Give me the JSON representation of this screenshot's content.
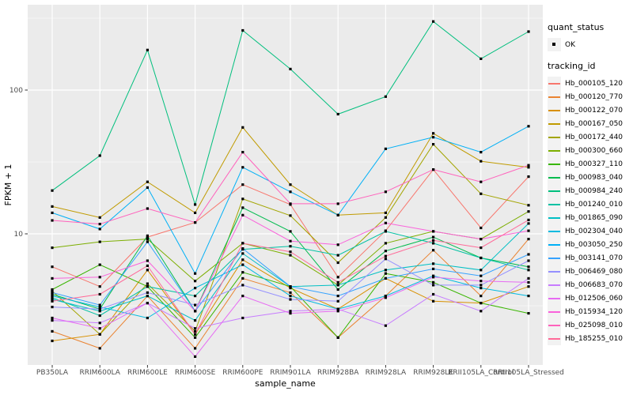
{
  "legend": {
    "quant_status_title": "quant_status",
    "quant_status_entries": [
      {
        "label": "OK",
        "marker": "black-square-point"
      }
    ],
    "tracking_id_title": "tracking_id"
  },
  "panel": {
    "bg": "#EBEBEB",
    "grid_color": "#FFFFFF",
    "point_color": "#000000",
    "tick_label_color": "#4D4D4D",
    "axis_title_color": "#000000"
  },
  "chart_data": {
    "type": "line",
    "title": "",
    "xlabel": "sample_name",
    "ylabel": "FPKM + 1",
    "x_categories": [
      "PB350LA",
      "RRIM600LA",
      "RRIM600LE",
      "RRIM600SE",
      "RRIM600PE",
      "RRIM901LA",
      "RRIM928BA",
      "RRIM928LA",
      "RRIM928LE",
      "RRII105LA_Control",
      "RRII105LA_Stressed"
    ],
    "y_scale": "log10",
    "y_major_ticks": [
      10,
      100
    ],
    "y_minor_ticks": [
      3.162,
      31.62,
      316.2
    ],
    "ylim": [
      1.2,
      390
    ],
    "grid": true,
    "legend_position": "right",
    "point_marker": "black-square",
    "series": [
      {
        "name": "Hb_000105_120",
        "color": "#F8766D",
        "values": [
          5.9,
          4.3,
          9.5,
          12,
          22,
          16,
          5.0,
          10.5,
          28,
          11,
          25
        ]
      },
      {
        "name": "Hb_000120_770",
        "color": "#EA8331",
        "values": [
          2.1,
          1.6,
          3.7,
          1.6,
          4.9,
          3.9,
          1.9,
          3.7,
          7.7,
          3.7,
          9.2
        ]
      },
      {
        "name": "Hb_000122_070",
        "color": "#D89000",
        "values": [
          1.8,
          2.0,
          5.6,
          2.0,
          6.6,
          4.2,
          3.0,
          4.9,
          3.4,
          3.3,
          4.3
        ]
      },
      {
        "name": "Hb_000167_050",
        "color": "#C09B00",
        "values": [
          15.5,
          13,
          23,
          14,
          55,
          22,
          13.5,
          14,
          50,
          32,
          29
        ]
      },
      {
        "name": "Hb_000172_440",
        "color": "#A3A500",
        "values": [
          4.0,
          2.0,
          4.5,
          2.1,
          17.5,
          13.4,
          6.3,
          13,
          42,
          19,
          15.8
        ]
      },
      {
        "name": "Hb_000300_660",
        "color": "#7CAE00",
        "values": [
          8.0,
          8.8,
          9.2,
          4.7,
          8.6,
          7.1,
          4.4,
          8.6,
          10.4,
          9.2,
          14.3
        ]
      },
      {
        "name": "Hb_000327_110",
        "color": "#39B600",
        "values": [
          4.1,
          6.1,
          4.3,
          1.9,
          5.4,
          4.3,
          1.9,
          5.3,
          4.6,
          3.3,
          2.8
        ]
      },
      {
        "name": "Hb_000983_040",
        "color": "#00BB4E",
        "values": [
          3.8,
          3.0,
          9.7,
          2.9,
          15.2,
          10.4,
          4.1,
          7.6,
          9.5,
          6.8,
          5.9
        ]
      },
      {
        "name": "Hb_000984_240",
        "color": "#00BF7D",
        "values": [
          20,
          35,
          190,
          16,
          260,
          140,
          68,
          90,
          300,
          165,
          255
        ]
      },
      {
        "name": "Hb_001240_010",
        "color": "#00C1A3",
        "values": [
          3.6,
          2.7,
          4.3,
          3.7,
          7.8,
          8.2,
          7.1,
          10.4,
          8.6,
          6.8,
          5.6
        ]
      },
      {
        "name": "Hb_001865_090",
        "color": "#00BFC4",
        "values": [
          3.5,
          2.9,
          3.7,
          2.5,
          7.3,
          4.3,
          4.4,
          5.6,
          6.2,
          5.6,
          11.8
        ]
      },
      {
        "name": "Hb_002304_040",
        "color": "#00BAE0",
        "values": [
          3.7,
          3.1,
          2.6,
          4.2,
          6.1,
          3.7,
          3.0,
          3.7,
          5.1,
          4.2,
          3.7
        ]
      },
      {
        "name": "Hb_003050_250",
        "color": "#00B0F6",
        "values": [
          14,
          10.8,
          21,
          5.3,
          29,
          19.6,
          13.5,
          39,
          47,
          37,
          56
        ]
      },
      {
        "name": "Hb_003141_070",
        "color": "#35A2FF",
        "values": [
          3.9,
          3.2,
          8.8,
          2.9,
          7.9,
          4.3,
          3.7,
          4.9,
          5.7,
          5.1,
          7.2
        ]
      },
      {
        "name": "Hb_006469_080",
        "color": "#9590FF",
        "values": [
          3.1,
          3.0,
          3.9,
          3.2,
          4.4,
          3.5,
          3.4,
          6.7,
          4.4,
          4.4,
          6.5
        ]
      },
      {
        "name": "Hb_006683_070",
        "color": "#C77CFF",
        "values": [
          2.5,
          2.4,
          3.3,
          2.2,
          2.6,
          2.9,
          3.0,
          2.3,
          3.8,
          2.9,
          4.9
        ]
      },
      {
        "name": "Hb_012506_060",
        "color": "#E76BF3",
        "values": [
          2.6,
          2.2,
          3.3,
          1.4,
          3.7,
          2.8,
          2.9,
          3.6,
          5.0,
          4.7,
          4.6
        ]
      },
      {
        "name": "Hb_015934_120",
        "color": "#FA62DB",
        "values": [
          4.9,
          5.0,
          6.5,
          2.9,
          13.5,
          8.9,
          8.4,
          11.9,
          10.4,
          9.2,
          10.5
        ]
      },
      {
        "name": "Hb_025098_010",
        "color": "#FF62BC",
        "values": [
          12.4,
          11.7,
          15,
          12,
          37,
          16.2,
          16.2,
          19.6,
          28,
          23,
          30
        ]
      },
      {
        "name": "Hb_185255_010",
        "color": "#FF6A98",
        "values": [
          3.4,
          3.8,
          6.0,
          2.0,
          8.6,
          7.5,
          4.6,
          7.0,
          9.0,
          8.0,
          12.5
        ]
      }
    ]
  }
}
